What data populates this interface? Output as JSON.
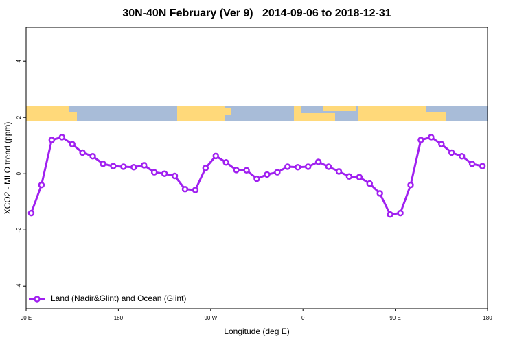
{
  "chart_data": {
    "type": "line",
    "title": "30N-40N February (Ver 9)   2014-09-06 to 2018-12-31",
    "xlabel": "Longitude (deg E)",
    "ylabel": "XCO2 - MLO trend (ppm)",
    "x": [
      95,
      105,
      115,
      125,
      135,
      145,
      155,
      165,
      175,
      185,
      195,
      205,
      215,
      225,
      235,
      245,
      255,
      265,
      275,
      285,
      295,
      305,
      315,
      325,
      335,
      345,
      355,
      365,
      375,
      385,
      395,
      405,
      415,
      425,
      435,
      445,
      455,
      465,
      475,
      485,
      495,
      505,
      515,
      525,
      535
    ],
    "series": [
      {
        "name": "Land (Nadir&Glint) and Ocean (Glint)",
        "color": "#a020f0",
        "values": [
          -1.4,
          -0.4,
          1.2,
          1.3,
          1.05,
          0.75,
          0.62,
          0.35,
          0.27,
          0.25,
          0.23,
          0.3,
          0.05,
          0.0,
          -0.08,
          -0.55,
          -0.58,
          0.2,
          0.63,
          0.4,
          0.13,
          0.12,
          -0.18,
          -0.03,
          0.05,
          0.25,
          0.23,
          0.25,
          0.42,
          0.25,
          0.08,
          -0.1,
          -0.12,
          -0.35,
          -0.7,
          -1.45,
          -1.4,
          -0.4,
          1.2,
          1.3,
          1.05,
          0.75,
          0.62,
          0.35,
          0.27
        ]
      }
    ],
    "xlim": [
      90,
      540
    ],
    "xticks": [
      {
        "value": 90,
        "label": "90 E"
      },
      180,
      {
        "value": 270,
        "label": "90 W"
      },
      {
        "value": 360,
        "label": "0"
      },
      {
        "value": 450,
        "label": "90 E"
      },
      {
        "value": 540,
        "label": "180"
      }
    ],
    "ylim": [
      -4.8,
      5.2
    ],
    "yticks": [
      -4,
      -2,
      0,
      2,
      4
    ],
    "legend": "bottomleft"
  }
}
